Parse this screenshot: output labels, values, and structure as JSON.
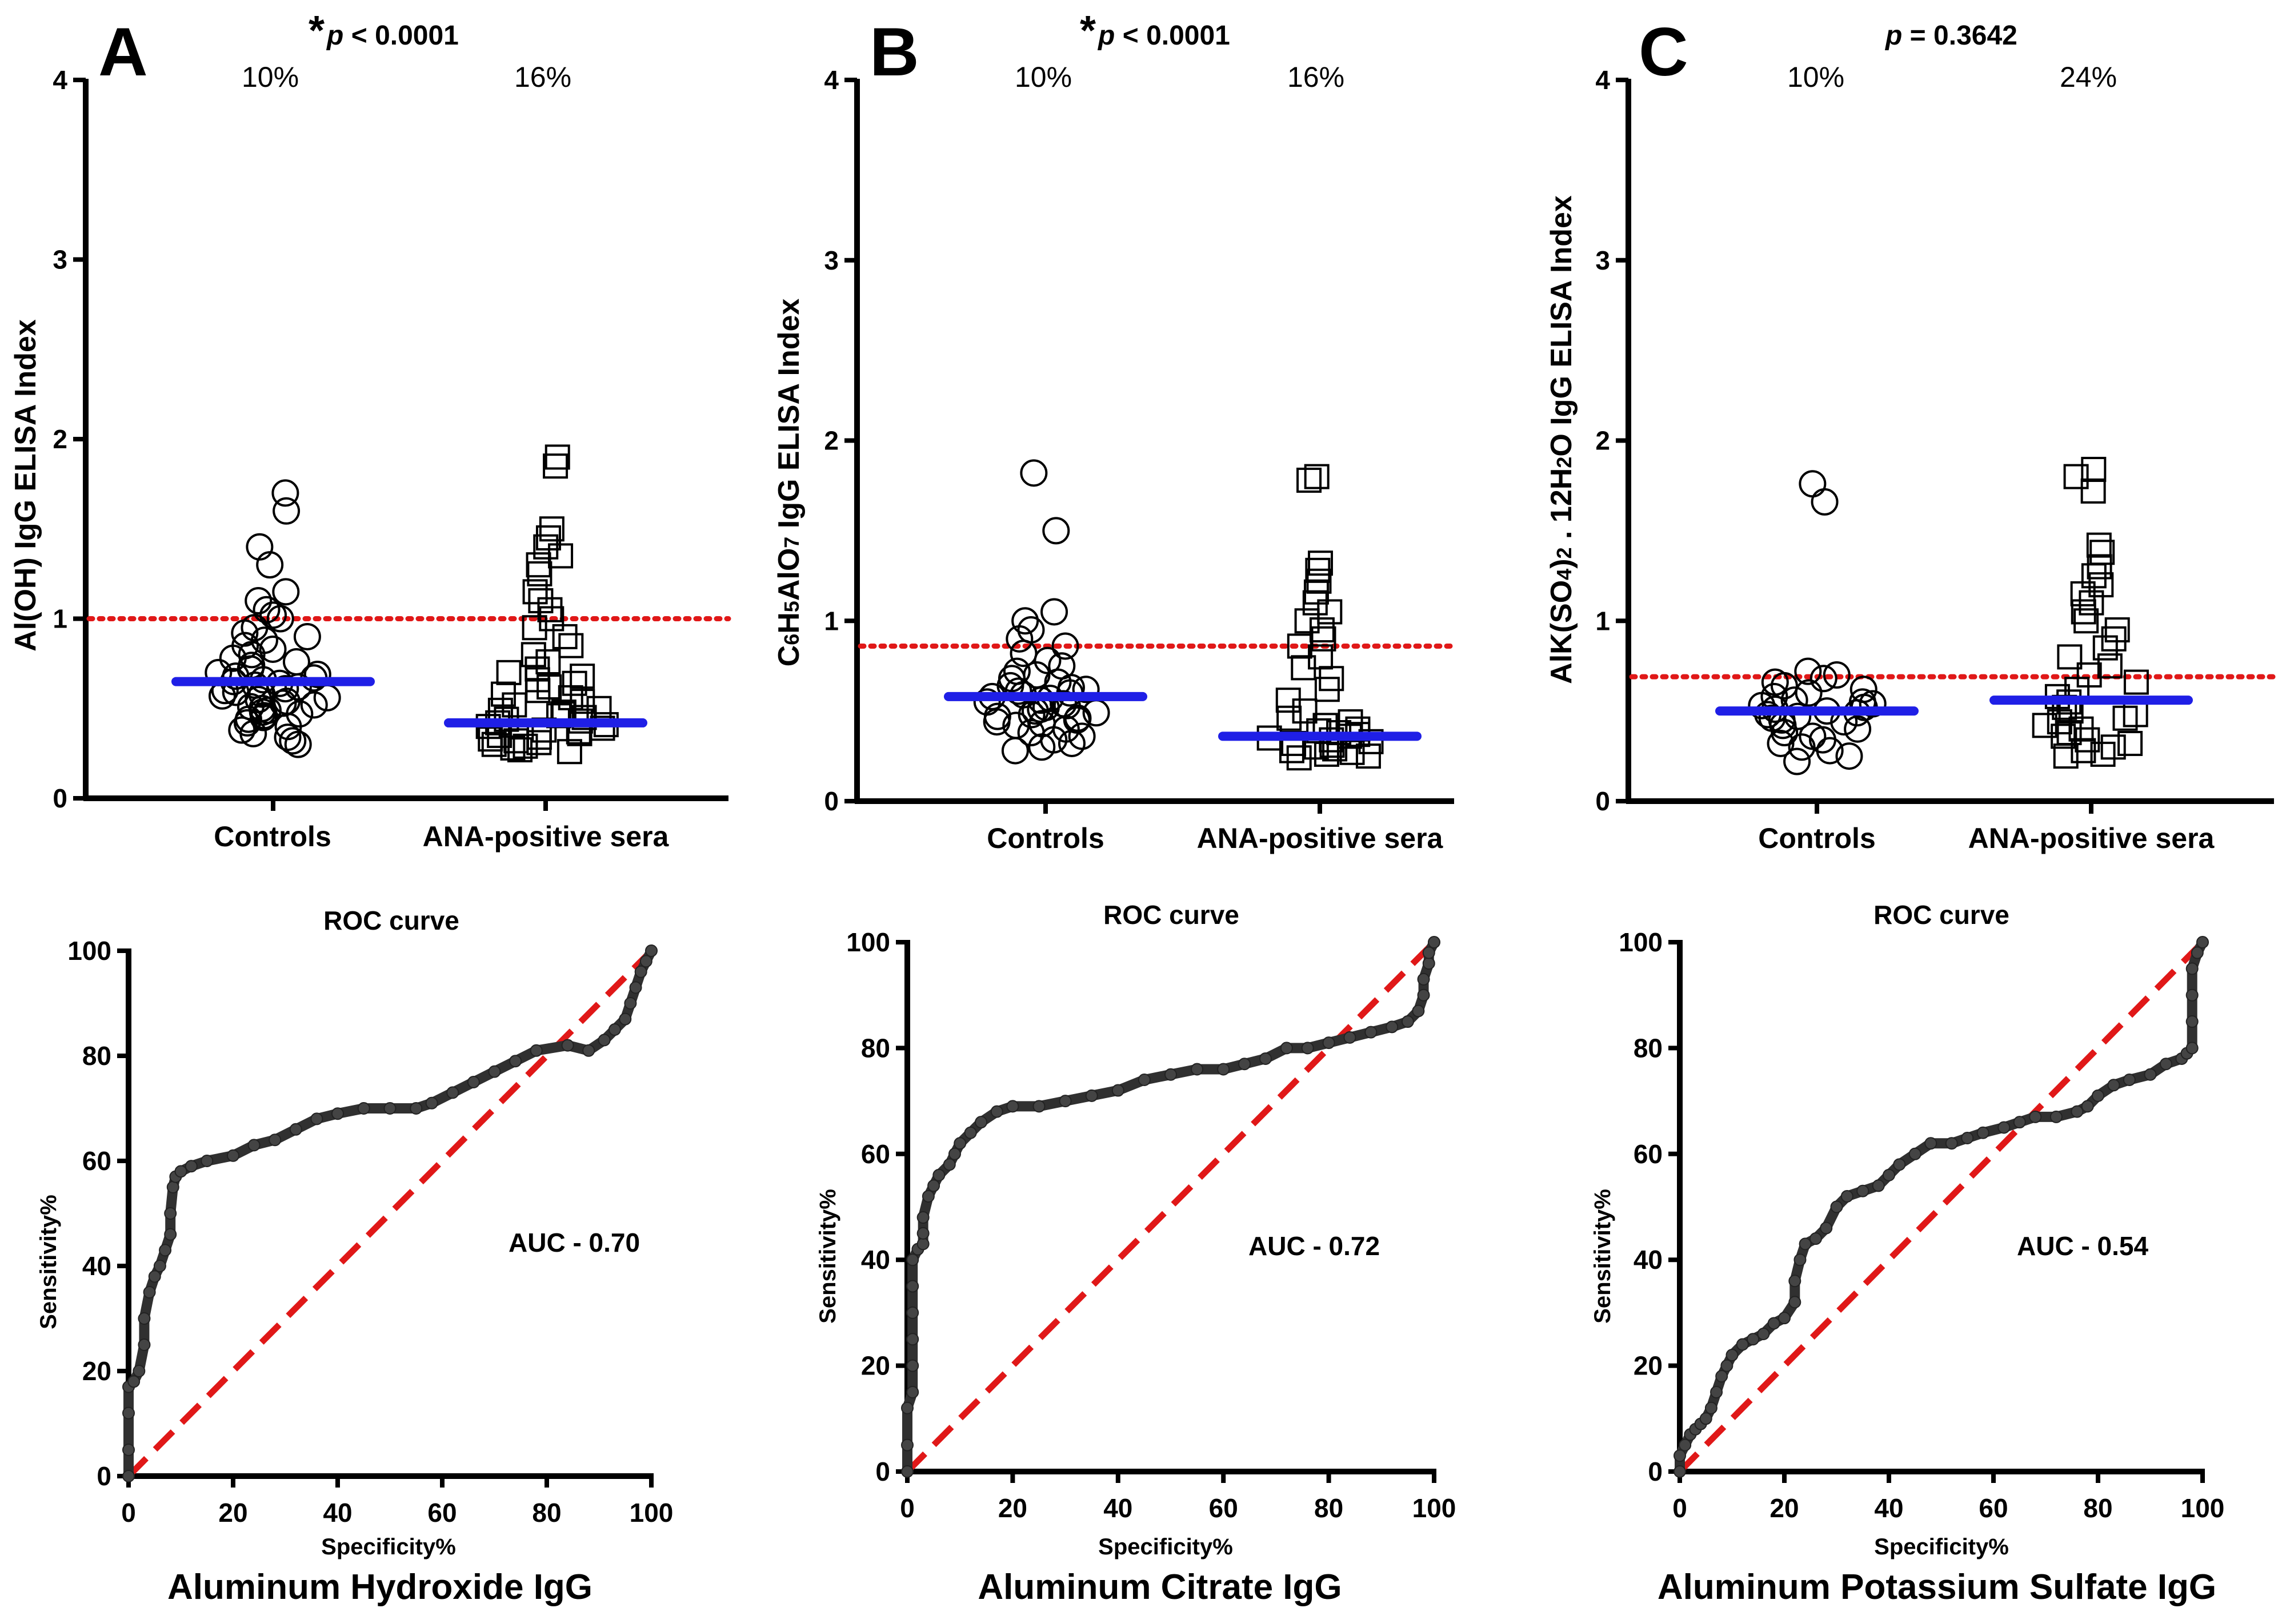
{
  "figure": {
    "captions": [
      "Aluminum Hydroxide IgG",
      "Aluminum Citrate IgG",
      "Aluminum Potassium Sulfate IgG"
    ]
  },
  "colors": {
    "median": "#1f1fe6",
    "cutoff": "#e01818",
    "roc": "#303030",
    "diag": "#e01818",
    "axis": "#000000"
  },
  "chart_data": [
    {
      "type": "scatter",
      "panel": "A",
      "p_star": "*",
      "p_label": "p",
      "p_value": " < 0.0001",
      "ylabel_parts": [
        "Al(OH) IgG ELISA Index"
      ],
      "ylabel_subs": [],
      "ylim": [
        0,
        4
      ],
      "yticks": [
        "0",
        "1",
        "2",
        "3",
        "4"
      ],
      "categories": [
        "Controls",
        "ANA-positive sera"
      ],
      "percents": [
        "10%",
        "16%"
      ],
      "cutoff": 1.0,
      "medians": [
        0.65,
        0.42
      ],
      "controls_points": [
        1.7,
        1.6,
        1.4,
        1.3,
        1.15,
        1.1,
        1.05,
        1.02,
        1.0,
        0.95,
        0.92,
        0.9,
        0.88,
        0.85,
        0.83,
        0.8,
        0.78,
        0.76,
        0.74,
        0.72,
        0.7,
        0.69,
        0.68,
        0.67,
        0.66,
        0.65,
        0.64,
        0.63,
        0.62,
        0.61,
        0.6,
        0.59,
        0.58,
        0.57,
        0.56,
        0.55,
        0.54,
        0.53,
        0.52,
        0.51,
        0.5,
        0.49,
        0.48,
        0.47,
        0.46,
        0.45,
        0.44,
        0.42,
        0.4,
        0.38,
        0.36,
        0.34,
        0.32,
        0.3
      ],
      "sera_points": [
        1.9,
        1.85,
        1.5,
        1.45,
        1.4,
        1.35,
        1.3,
        1.25,
        1.15,
        1.1,
        1.05,
        1.0,
        0.95,
        0.9,
        0.85,
        0.8,
        0.76,
        0.72,
        0.7,
        0.68,
        0.66,
        0.64,
        0.62,
        0.6,
        0.58,
        0.56,
        0.54,
        0.52,
        0.5,
        0.49,
        0.48,
        0.47,
        0.46,
        0.45,
        0.44,
        0.43,
        0.42,
        0.41,
        0.4,
        0.39,
        0.38,
        0.37,
        0.36,
        0.35,
        0.34,
        0.33,
        0.32,
        0.31,
        0.3,
        0.29,
        0.28,
        0.27,
        0.26
      ],
      "roc_title": "ROC curve",
      "auc": "AUC - 0.70",
      "roc_xlabel": "Specificity%",
      "roc_ylabel": "Sensitivity%",
      "roc_ticks": [
        "0",
        "20",
        "40",
        "60",
        "80",
        "100"
      ],
      "roc_curve": [
        [
          0,
          0
        ],
        [
          0,
          5
        ],
        [
          0,
          12
        ],
        [
          0,
          17
        ],
        [
          1,
          18
        ],
        [
          2,
          20
        ],
        [
          3,
          25
        ],
        [
          3,
          30
        ],
        [
          4,
          35
        ],
        [
          5,
          38
        ],
        [
          6,
          40
        ],
        [
          7,
          43
        ],
        [
          8,
          46
        ],
        [
          8,
          50
        ],
        [
          8.5,
          55
        ],
        [
          9,
          57
        ],
        [
          10,
          58
        ],
        [
          12,
          59
        ],
        [
          15,
          60
        ],
        [
          20,
          61
        ],
        [
          24,
          63
        ],
        [
          28,
          64
        ],
        [
          32,
          66
        ],
        [
          36,
          68
        ],
        [
          40,
          69
        ],
        [
          45,
          70
        ],
        [
          50,
          70
        ],
        [
          55,
          70
        ],
        [
          58,
          71
        ],
        [
          62,
          73
        ],
        [
          66,
          75
        ],
        [
          70,
          77
        ],
        [
          74,
          79
        ],
        [
          78,
          81
        ],
        [
          84,
          82
        ],
        [
          88,
          81
        ],
        [
          91,
          83
        ],
        [
          93,
          85
        ],
        [
          95,
          87
        ],
        [
          96,
          90
        ],
        [
          97,
          93
        ],
        [
          98,
          96
        ],
        [
          99,
          98
        ],
        [
          100,
          100
        ]
      ]
    },
    {
      "type": "scatter",
      "panel": "B",
      "p_star": "*",
      "p_label": "p",
      "p_value": " < 0.0001",
      "ylabel_parts": [
        "C",
        "6",
        "H",
        "5",
        "AlO",
        "7",
        " IgG ELISA Index"
      ],
      "ylabel_subs": [
        1,
        3,
        5
      ],
      "ylim": [
        0,
        4
      ],
      "yticks": [
        "0",
        "1",
        "2",
        "3",
        "4"
      ],
      "categories": [
        "Controls",
        "ANA-positive sera"
      ],
      "percents": [
        "10%",
        "16%"
      ],
      "cutoff": 0.86,
      "medians": [
        0.58,
        0.36
      ],
      "controls_points": [
        1.82,
        1.5,
        1.05,
        1.0,
        0.95,
        0.9,
        0.86,
        0.82,
        0.78,
        0.75,
        0.72,
        0.7,
        0.68,
        0.66,
        0.64,
        0.63,
        0.62,
        0.61,
        0.6,
        0.59,
        0.58,
        0.57,
        0.56,
        0.55,
        0.54,
        0.53,
        0.52,
        0.51,
        0.5,
        0.49,
        0.48,
        0.47,
        0.46,
        0.45,
        0.44,
        0.43,
        0.42,
        0.4,
        0.38,
        0.36,
        0.34,
        0.32,
        0.3,
        0.28
      ],
      "sera_points": [
        1.8,
        1.78,
        1.32,
        1.28,
        1.22,
        1.16,
        1.1,
        1.05,
        1.0,
        0.95,
        0.9,
        0.86,
        0.8,
        0.74,
        0.68,
        0.62,
        0.56,
        0.5,
        0.46,
        0.44,
        0.42,
        0.4,
        0.39,
        0.38,
        0.37,
        0.36,
        0.35,
        0.34,
        0.33,
        0.32,
        0.31,
        0.3,
        0.29,
        0.28,
        0.27,
        0.26,
        0.25,
        0.24
      ],
      "roc_title": "ROC curve",
      "auc": "AUC - 0.72",
      "roc_xlabel": "Specificity%",
      "roc_ylabel": "Sensitivity%",
      "roc_ticks": [
        "0",
        "20",
        "40",
        "60",
        "80",
        "100"
      ],
      "roc_curve": [
        [
          0,
          0
        ],
        [
          0,
          5
        ],
        [
          0,
          12
        ],
        [
          1,
          15
        ],
        [
          1,
          20
        ],
        [
          1,
          25
        ],
        [
          1,
          30
        ],
        [
          1,
          35
        ],
        [
          1,
          40
        ],
        [
          2,
          42
        ],
        [
          3,
          43
        ],
        [
          3,
          45
        ],
        [
          3,
          48
        ],
        [
          4,
          52
        ],
        [
          5,
          54
        ],
        [
          6,
          56
        ],
        [
          8,
          58
        ],
        [
          9,
          60
        ],
        [
          10,
          62
        ],
        [
          12,
          64
        ],
        [
          14,
          66
        ],
        [
          17,
          68
        ],
        [
          20,
          69
        ],
        [
          25,
          69
        ],
        [
          30,
          70
        ],
        [
          35,
          71
        ],
        [
          40,
          72
        ],
        [
          45,
          74
        ],
        [
          50,
          75
        ],
        [
          55,
          76
        ],
        [
          60,
          76
        ],
        [
          64,
          77
        ],
        [
          68,
          78
        ],
        [
          72,
          80
        ],
        [
          76,
          80
        ],
        [
          80,
          81
        ],
        [
          84,
          82
        ],
        [
          88,
          83
        ],
        [
          92,
          84
        ],
        [
          95,
          85
        ],
        [
          97,
          87
        ],
        [
          98,
          90
        ],
        [
          98,
          93
        ],
        [
          99,
          96
        ],
        [
          99,
          98
        ],
        [
          100,
          100
        ]
      ]
    },
    {
      "type": "scatter",
      "panel": "C",
      "p_star": "",
      "p_label": "p",
      "p_value": " = 0.3642",
      "ylabel_parts": [
        "AlK(SO",
        "4",
        ")",
        "2",
        " . 12H",
        "2",
        "O IgG ELISA Index"
      ],
      "ylabel_subs": [
        1,
        3,
        5
      ],
      "ylim": [
        0,
        4
      ],
      "yticks": [
        "0",
        "1",
        "2",
        "3",
        "4"
      ],
      "categories": [
        "Controls",
        "ANA-positive sera"
      ],
      "percents": [
        "10%",
        "24%"
      ],
      "cutoff": 0.69,
      "medians": [
        0.5,
        0.56
      ],
      "controls_points": [
        1.76,
        1.66,
        0.72,
        0.7,
        0.68,
        0.66,
        0.64,
        0.62,
        0.6,
        0.58,
        0.56,
        0.55,
        0.54,
        0.53,
        0.52,
        0.51,
        0.5,
        0.49,
        0.48,
        0.47,
        0.46,
        0.45,
        0.44,
        0.42,
        0.4,
        0.38,
        0.36,
        0.34,
        0.32,
        0.3,
        0.28,
        0.25,
        0.22
      ],
      "sera_points": [
        1.84,
        1.8,
        1.72,
        1.42,
        1.38,
        1.3,
        1.25,
        1.2,
        1.15,
        1.1,
        1.05,
        1.0,
        0.95,
        0.9,
        0.85,
        0.8,
        0.75,
        0.7,
        0.66,
        0.62,
        0.58,
        0.55,
        0.52,
        0.5,
        0.48,
        0.46,
        0.44,
        0.42,
        0.4,
        0.38,
        0.36,
        0.34,
        0.32,
        0.3,
        0.28,
        0.26,
        0.25
      ],
      "roc_title": "ROC curve",
      "auc": "AUC - 0.54",
      "roc_xlabel": "Specificity%",
      "roc_ylabel": "Sensitivity%",
      "roc_ticks": [
        "0",
        "20",
        "40",
        "60",
        "80",
        "100"
      ],
      "roc_curve": [
        [
          0,
          0
        ],
        [
          0,
          3
        ],
        [
          1,
          5
        ],
        [
          2,
          7
        ],
        [
          3,
          8
        ],
        [
          4,
          9
        ],
        [
          5,
          10
        ],
        [
          6,
          12
        ],
        [
          7,
          15
        ],
        [
          8,
          18
        ],
        [
          9,
          20
        ],
        [
          10,
          22
        ],
        [
          12,
          24
        ],
        [
          14,
          25
        ],
        [
          16,
          26
        ],
        [
          18,
          28
        ],
        [
          20,
          29
        ],
        [
          22,
          32
        ],
        [
          22,
          36
        ],
        [
          23,
          40
        ],
        [
          24,
          43
        ],
        [
          26,
          44
        ],
        [
          28,
          46
        ],
        [
          30,
          50
        ],
        [
          32,
          52
        ],
        [
          35,
          53
        ],
        [
          38,
          54
        ],
        [
          40,
          56
        ],
        [
          42,
          58
        ],
        [
          45,
          60
        ],
        [
          48,
          62
        ],
        [
          52,
          62
        ],
        [
          55,
          63
        ],
        [
          58,
          64
        ],
        [
          62,
          65
        ],
        [
          65,
          66
        ],
        [
          68,
          67
        ],
        [
          72,
          67
        ],
        [
          76,
          68
        ],
        [
          78,
          69
        ],
        [
          80,
          71
        ],
        [
          83,
          73
        ],
        [
          86,
          74
        ],
        [
          90,
          75
        ],
        [
          93,
          77
        ],
        [
          96,
          78
        ],
        [
          97,
          79
        ],
        [
          98,
          80
        ],
        [
          98,
          85
        ],
        [
          98,
          90
        ],
        [
          98,
          95
        ],
        [
          99,
          98
        ],
        [
          100,
          100
        ]
      ]
    }
  ]
}
